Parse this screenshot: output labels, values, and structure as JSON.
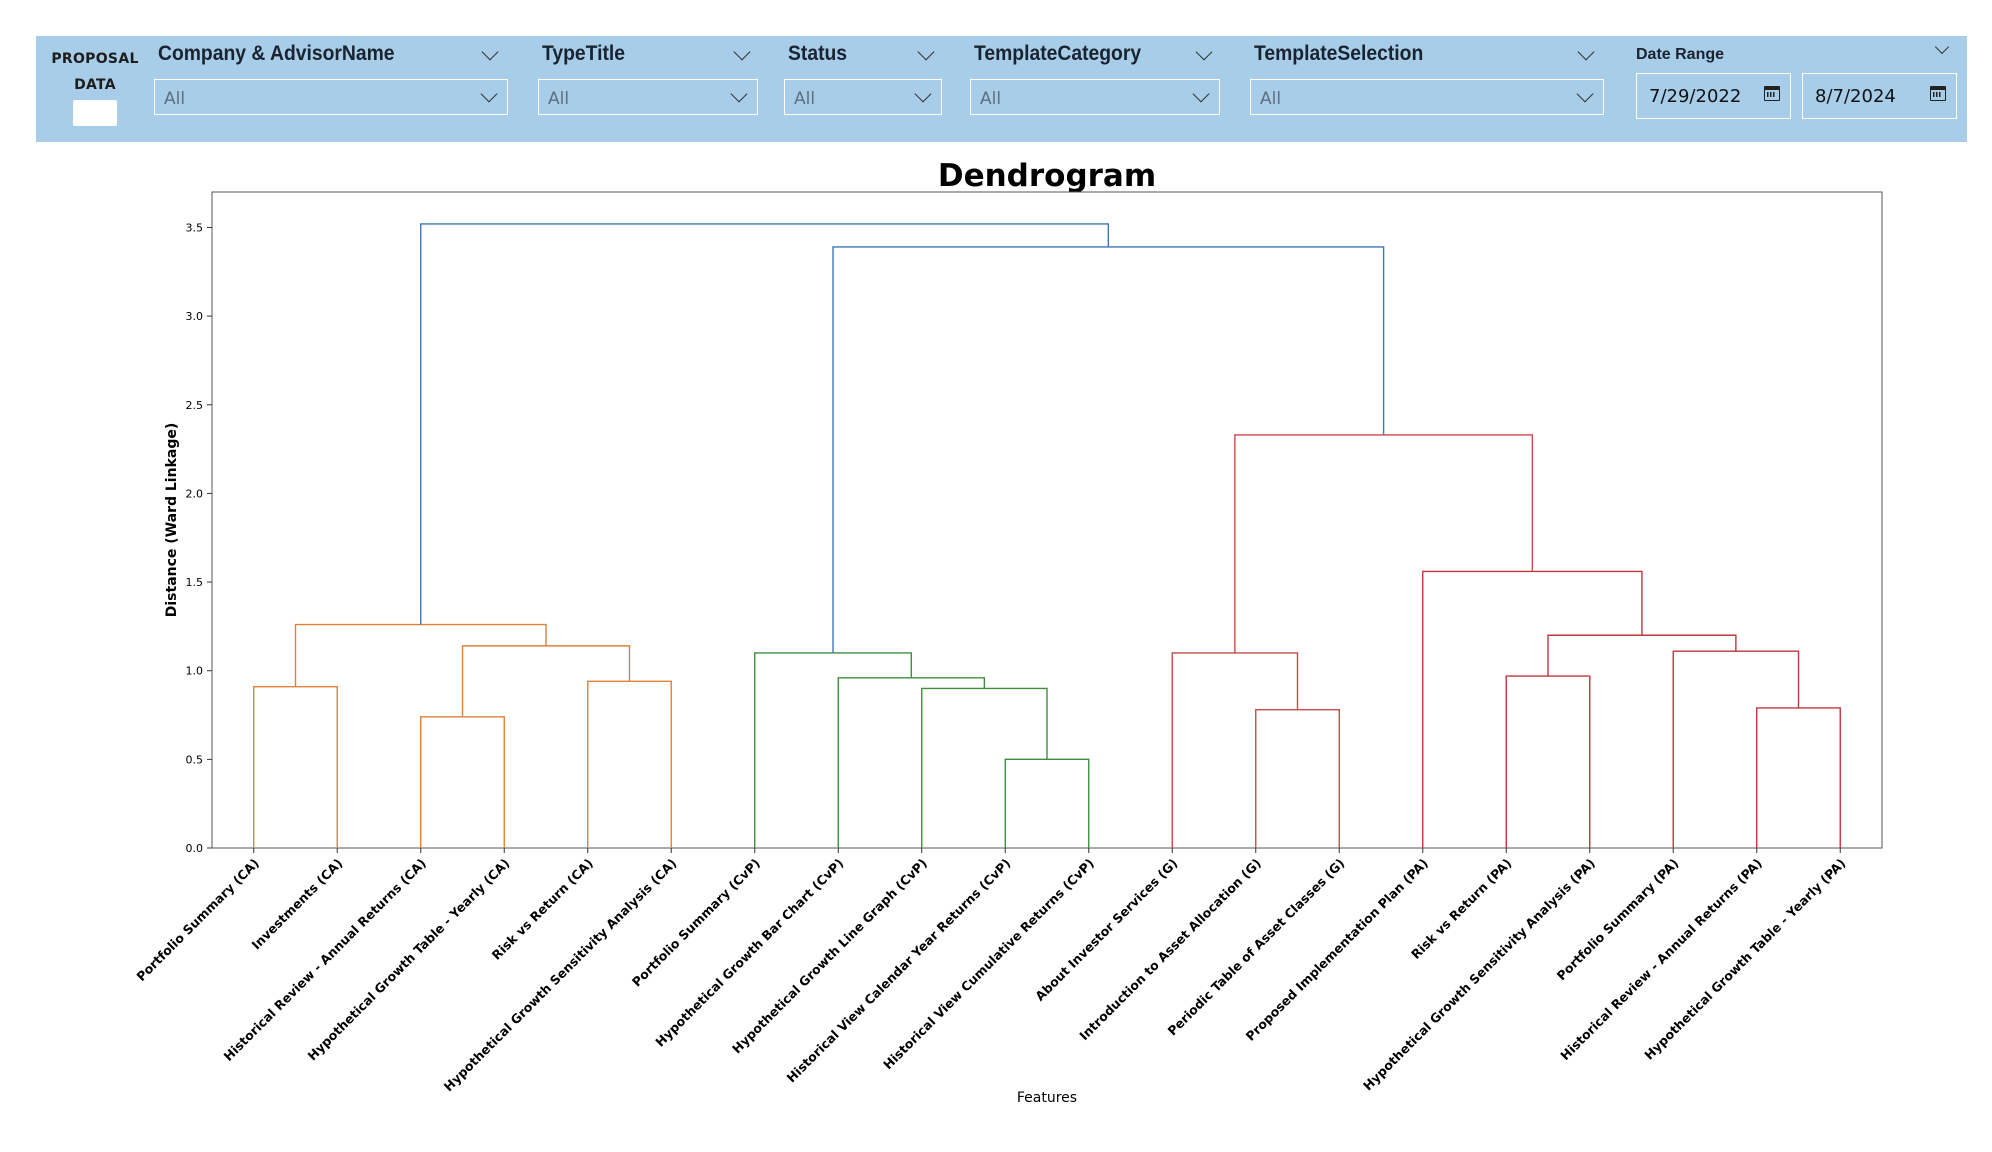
{
  "proposal": {
    "line1": "PROPOSAL",
    "line2": "DATA"
  },
  "filters": [
    {
      "title": "Company & AdvisorName",
      "value": "All"
    },
    {
      "title": "TypeTitle",
      "value": "All"
    },
    {
      "title": "Status",
      "value": "All"
    },
    {
      "title": "TemplateCategory",
      "value": "All"
    },
    {
      "title": "TemplateSelection",
      "value": "All"
    }
  ],
  "date_range": {
    "label": "Date Range",
    "start": "7/29/2022",
    "end": "8/7/2024"
  },
  "colors": {
    "filter_bar": "#a7cde9",
    "cluster_ca": "#e0813a",
    "cluster_cvp": "#3e8e3e",
    "cluster_g": "#c94a4a",
    "cluster_pa": "#c0363c",
    "root_links": "#3f76b8"
  },
  "chart_data": {
    "type": "dendrogram",
    "title": "Dendrogram",
    "xlabel": "Features",
    "ylabel": "Distance (Ward Linkage)",
    "ylim": [
      0,
      3.7
    ],
    "yticks": [
      "0.0",
      "0.5",
      "1.0",
      "1.5",
      "2.0",
      "2.5",
      "3.0",
      "3.5"
    ],
    "leaves": [
      "Portfolio Summary (CA)",
      "Investments (CA)",
      "Historical Review - Annual Returns (CA)",
      "Hypothetical Growth Table - Yearly (CA)",
      "Risk vs Return (CA)",
      "Hypothetical Growth Sensitivity Analysis (CA)",
      "Portfolio Summary (CvP)",
      "Hypothetical Growth Bar Chart (CvP)",
      "Hypothetical Growth Line Graph (CvP)",
      "Historical View Calendar Year Returns (CvP)",
      "Historical View Cumulative Returns (CvP)",
      "About Investor Services (G)",
      "Introduction to Asset Allocation (G)",
      "Periodic Table of Asset Classes (G)",
      "Proposed Implementation Plan (PA)",
      "Risk vs Return (PA)",
      "Hypothetical Growth Sensitivity Analysis (PA)",
      "Portfolio Summary (PA)",
      "Historical Review - Annual Returns (PA)",
      "Hypothetical Growth Table - Yearly (PA)"
    ],
    "merges": [
      {
        "left": 0,
        "right": 1,
        "height": 0.91,
        "cluster": "CA"
      },
      {
        "left": 2,
        "right": 3,
        "height": 0.74,
        "cluster": "CA"
      },
      {
        "left": 4,
        "right": 5,
        "height": 0.94,
        "cluster": "CA"
      },
      {
        "left": "m1",
        "right": "m2",
        "height": 1.14,
        "cluster": "CA"
      },
      {
        "left": "m0",
        "right": "m3",
        "height": 1.26,
        "cluster": "CA"
      },
      {
        "left": 9,
        "right": 10,
        "height": 0.5,
        "cluster": "CvP"
      },
      {
        "left": 8,
        "right": "m5",
        "height": 0.9,
        "cluster": "CvP"
      },
      {
        "left": 7,
        "right": "m6",
        "height": 0.96,
        "cluster": "CvP"
      },
      {
        "left": 6,
        "right": "m7",
        "height": 1.1,
        "cluster": "CvP"
      },
      {
        "left": 12,
        "right": 13,
        "height": 0.78,
        "cluster": "G"
      },
      {
        "left": 11,
        "right": "m9",
        "height": 1.1,
        "cluster": "G"
      },
      {
        "left": 15,
        "right": 16,
        "height": 0.97,
        "cluster": "PA"
      },
      {
        "left": 18,
        "right": 19,
        "height": 0.79,
        "cluster": "PA"
      },
      {
        "left": 17,
        "right": "m12",
        "height": 1.11,
        "cluster": "PA"
      },
      {
        "left": "m11",
        "right": "m13",
        "height": 1.2,
        "cluster": "PA"
      },
      {
        "left": 14,
        "right": "m14",
        "height": 1.56,
        "cluster": "PA"
      },
      {
        "left": "m10",
        "right": "m15",
        "height": 2.33,
        "cluster": "GPA"
      },
      {
        "left": "m8",
        "right": "m16",
        "height": 3.39,
        "cluster": "root"
      },
      {
        "left": "m4",
        "right": "m17",
        "height": 3.52,
        "cluster": "root"
      }
    ]
  }
}
